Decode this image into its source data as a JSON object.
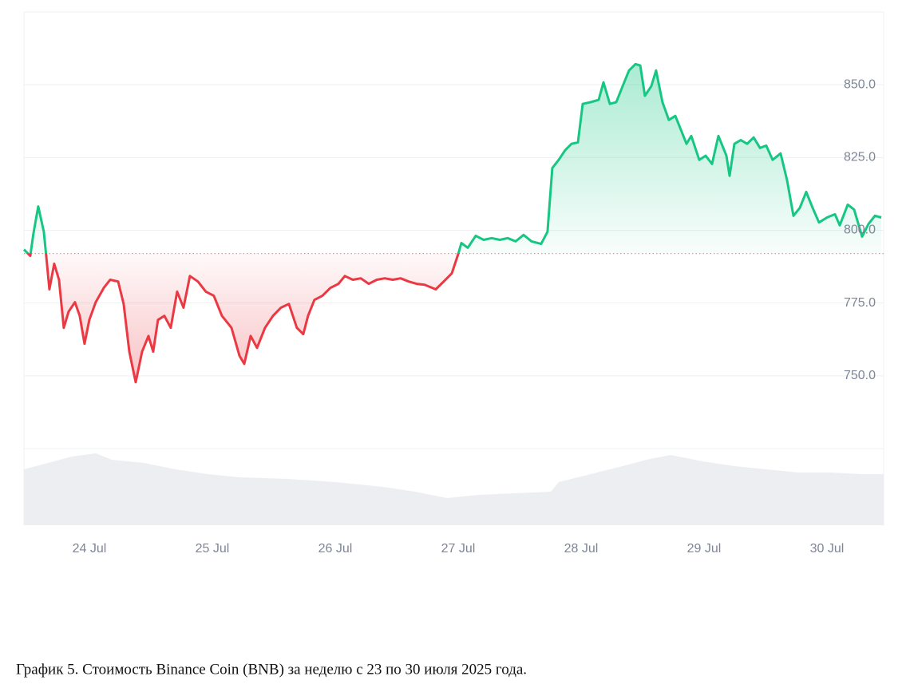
{
  "chart_data": {
    "type": "line",
    "caption": "График 5. Стоимость Binance Coin (BNB) за неделю с 23 по 30 июля 2025 года.",
    "x": [
      23.468,
      23.519,
      23.545,
      23.584,
      23.63,
      23.649,
      23.675,
      23.714,
      23.753,
      23.792,
      23.831,
      23.883,
      23.922,
      23.961,
      24.0,
      24.052,
      24.117,
      24.169,
      24.234,
      24.279,
      24.325,
      24.377,
      24.429,
      24.481,
      24.519,
      24.558,
      24.61,
      24.662,
      24.714,
      24.766,
      24.818,
      24.883,
      24.948,
      25.013,
      25.078,
      25.156,
      25.221,
      25.26,
      25.312,
      25.364,
      25.429,
      25.494,
      25.558,
      25.623,
      25.688,
      25.74,
      25.779,
      25.831,
      25.896,
      25.961,
      26.026,
      26.078,
      26.143,
      26.208,
      26.273,
      26.338,
      26.403,
      26.468,
      26.532,
      26.597,
      26.662,
      26.727,
      26.818,
      26.883,
      26.948,
      27.0,
      27.026,
      27.078,
      27.143,
      27.208,
      27.273,
      27.338,
      27.403,
      27.468,
      27.532,
      27.597,
      27.675,
      27.727,
      27.766,
      27.818,
      27.87,
      27.922,
      27.974,
      28.013,
      28.078,
      28.143,
      28.182,
      28.234,
      28.286,
      28.338,
      28.39,
      28.442,
      28.481,
      28.519,
      28.571,
      28.61,
      28.662,
      28.714,
      28.766,
      28.805,
      28.857,
      28.896,
      28.961,
      29.013,
      29.065,
      29.117,
      29.182,
      29.208,
      29.247,
      29.299,
      29.351,
      29.403,
      29.455,
      29.506,
      29.558,
      29.623,
      29.675,
      29.727,
      29.779,
      29.831,
      29.883,
      29.935,
      30.0,
      30.065,
      30.104,
      30.169,
      30.221,
      30.286,
      30.338,
      30.39,
      30.442
    ],
    "values": [
      793.4,
      791.2,
      798.9,
      808.2,
      799.5,
      791.2,
      779.7,
      788.5,
      783.0,
      766.5,
      772.0,
      775.3,
      770.6,
      761.0,
      769.2,
      775.3,
      780.2,
      783.0,
      782.4,
      774.7,
      758.3,
      747.8,
      758.3,
      763.7,
      758.3,
      769.2,
      770.6,
      766.5,
      778.9,
      773.4,
      784.3,
      782.4,
      778.9,
      777.5,
      770.6,
      766.5,
      756.9,
      754.1,
      763.7,
      759.6,
      766.5,
      770.6,
      773.4,
      774.7,
      766.5,
      764.3,
      770.6,
      776.1,
      777.5,
      780.2,
      781.6,
      784.3,
      783.0,
      783.5,
      781.6,
      783.0,
      783.5,
      783.0,
      783.5,
      782.4,
      781.6,
      781.3,
      779.7,
      782.4,
      785.2,
      791.8,
      795.6,
      794.0,
      798.1,
      796.7,
      797.3,
      796.7,
      797.3,
      796.2,
      798.4,
      796.2,
      795.3,
      799.5,
      821.4,
      824.2,
      827.5,
      829.7,
      830.2,
      843.4,
      844.0,
      844.8,
      850.8,
      843.4,
      844.0,
      849.5,
      854.9,
      857.1,
      856.6,
      846.2,
      849.5,
      854.9,
      844.0,
      837.9,
      839.3,
      835.2,
      829.7,
      832.4,
      824.2,
      825.6,
      822.8,
      832.4,
      825.6,
      818.7,
      829.7,
      831.0,
      829.7,
      831.9,
      828.3,
      829.1,
      824.2,
      826.4,
      817.3,
      805.0,
      807.7,
      813.2,
      807.7,
      802.7,
      804.4,
      805.5,
      801.7,
      808.8,
      807.1,
      797.8,
      802.2,
      805.0,
      804.4
    ],
    "reference_line": 792.0,
    "up_color": "#16c784",
    "down_color": "#ea3943",
    "xlim": [
      23.468,
      30.461
    ],
    "xticks": [
      {
        "value": 24,
        "label": "24 Jul"
      },
      {
        "value": 25,
        "label": "25 Jul"
      },
      {
        "value": 26,
        "label": "26 Jul"
      },
      {
        "value": 27,
        "label": "27 Jul"
      },
      {
        "value": 28,
        "label": "28 Jul"
      },
      {
        "value": 29,
        "label": "29 Jul"
      },
      {
        "value": 30,
        "label": "30 Jul"
      }
    ],
    "ylim": [
      725,
      875
    ],
    "yticks": [
      {
        "value": 750,
        "label": "750.0"
      },
      {
        "value": 775,
        "label": "775.0"
      },
      {
        "value": 800,
        "label": "800.0"
      },
      {
        "value": 825,
        "label": "825.0"
      },
      {
        "value": 850,
        "label": "850.0"
      }
    ],
    "grid": true
  }
}
